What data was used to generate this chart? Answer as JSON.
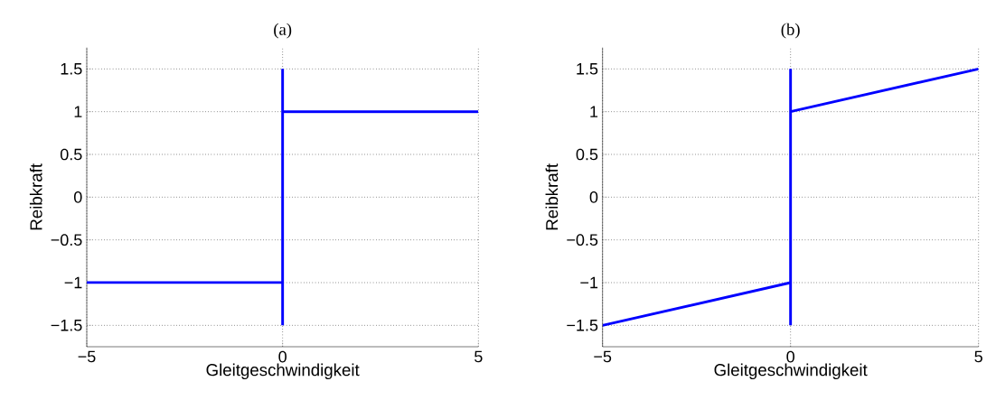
{
  "chart_data": [
    {
      "type": "line",
      "title": "(a)",
      "xlabel": "Gleitgeschwindigkeit",
      "ylabel": "Reibkraft",
      "xlim": [
        -5,
        5
      ],
      "ylim": [
        -1.75,
        1.75
      ],
      "xticks": [
        {
          "value": -5,
          "label": "−5"
        },
        0,
        5
      ],
      "yticks": [
        {
          "value": -1.5,
          "label": "−1.5"
        },
        {
          "value": -1,
          "label": "−1"
        },
        {
          "value": -0.5,
          "label": "−0.5"
        },
        0,
        0.5,
        1,
        1.5
      ],
      "grid": true,
      "line_style": "solid",
      "marker": "none",
      "series": [
        {
          "color": "#0000ff",
          "x": [
            -5,
            0
          ],
          "values": [
            -1,
            -1
          ]
        },
        {
          "color": "#0000ff",
          "x": [
            0,
            0
          ],
          "values": [
            -1.5,
            1.5
          ]
        },
        {
          "color": "#0000ff",
          "x": [
            0,
            5
          ],
          "values": [
            1,
            1
          ]
        }
      ]
    },
    {
      "type": "line",
      "title": "(b)",
      "xlabel": "Gleitgeschwindigkeit",
      "ylabel": "Reibkraft",
      "xlim": [
        -5,
        5
      ],
      "ylim": [
        -1.75,
        1.75
      ],
      "xticks": [
        {
          "value": -5,
          "label": "−5"
        },
        0,
        5
      ],
      "yticks": [
        {
          "value": -1.5,
          "label": "−1.5"
        },
        {
          "value": -1,
          "label": "−1"
        },
        {
          "value": -0.5,
          "label": "−0.5"
        },
        0,
        0.5,
        1,
        1.5
      ],
      "grid": true,
      "line_style": "solid",
      "marker": "none",
      "series": [
        {
          "color": "#0000ff",
          "x": [
            -5,
            0
          ],
          "values": [
            -1.5,
            -1
          ]
        },
        {
          "color": "#0000ff",
          "x": [
            0,
            0
          ],
          "values": [
            -1.5,
            1.5
          ]
        },
        {
          "color": "#0000ff",
          "x": [
            0,
            5
          ],
          "values": [
            1,
            1.5
          ]
        }
      ]
    }
  ]
}
